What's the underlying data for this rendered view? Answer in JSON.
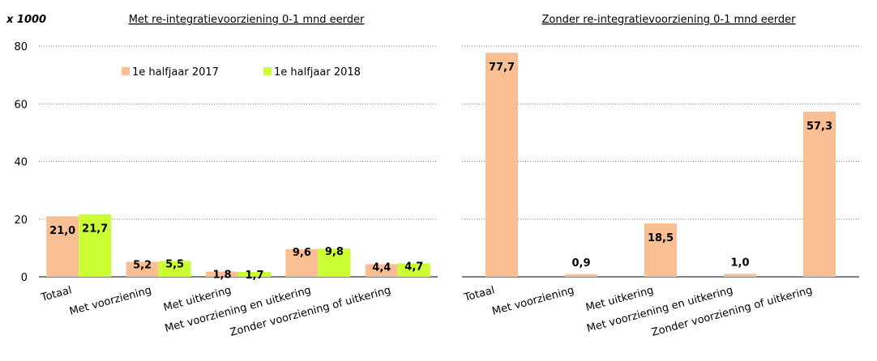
{
  "chart_data": [
    {
      "type": "bar",
      "title": "Met re-integratievoorziening  0-1 mnd eerder",
      "y_label": "x 1000",
      "categories": [
        "Totaal",
        "Met voorziening",
        "Met uitkering",
        "Met voorziening en uitkering",
        "Zonder voorziening of uitkering"
      ],
      "series": [
        {
          "name": "1e halfjaar 2017",
          "color": "#f9bf93",
          "values": [
            21.0,
            5.2,
            1.8,
            9.6,
            4.4
          ],
          "value_labels": [
            "21,0",
            "5,2",
            "1,8",
            "9,6",
            "4,4"
          ]
        },
        {
          "name": "1e halfjaar 2018",
          "color": "#ccff33",
          "values": [
            21.7,
            5.5,
            1.7,
            9.8,
            4.7
          ],
          "value_labels": [
            "21,7",
            "5,5",
            "1,7",
            "9,8",
            "4,7"
          ]
        }
      ],
      "ylim": [
        0,
        80
      ],
      "yticks": [
        0,
        20,
        40,
        60,
        80
      ],
      "grid": true,
      "legend": "top"
    },
    {
      "type": "bar",
      "title": "Zonder re-integratievoorziening  0-1 mnd eerder",
      "categories": [
        "Totaal",
        "Met voorziening",
        "Met uitkering",
        "Met voorziening en uitkering",
        "Zonder voorziening of uitkering"
      ],
      "color": "#f9bf93",
      "values": [
        77.7,
        0.9,
        18.5,
        1.0,
        57.3
      ],
      "value_labels": [
        "77,7",
        "0,9",
        "18,5",
        "1,0",
        "57,3"
      ],
      "ylim": [
        0,
        80
      ],
      "yticks": [
        0,
        20,
        40,
        60,
        80
      ],
      "grid": true
    }
  ]
}
